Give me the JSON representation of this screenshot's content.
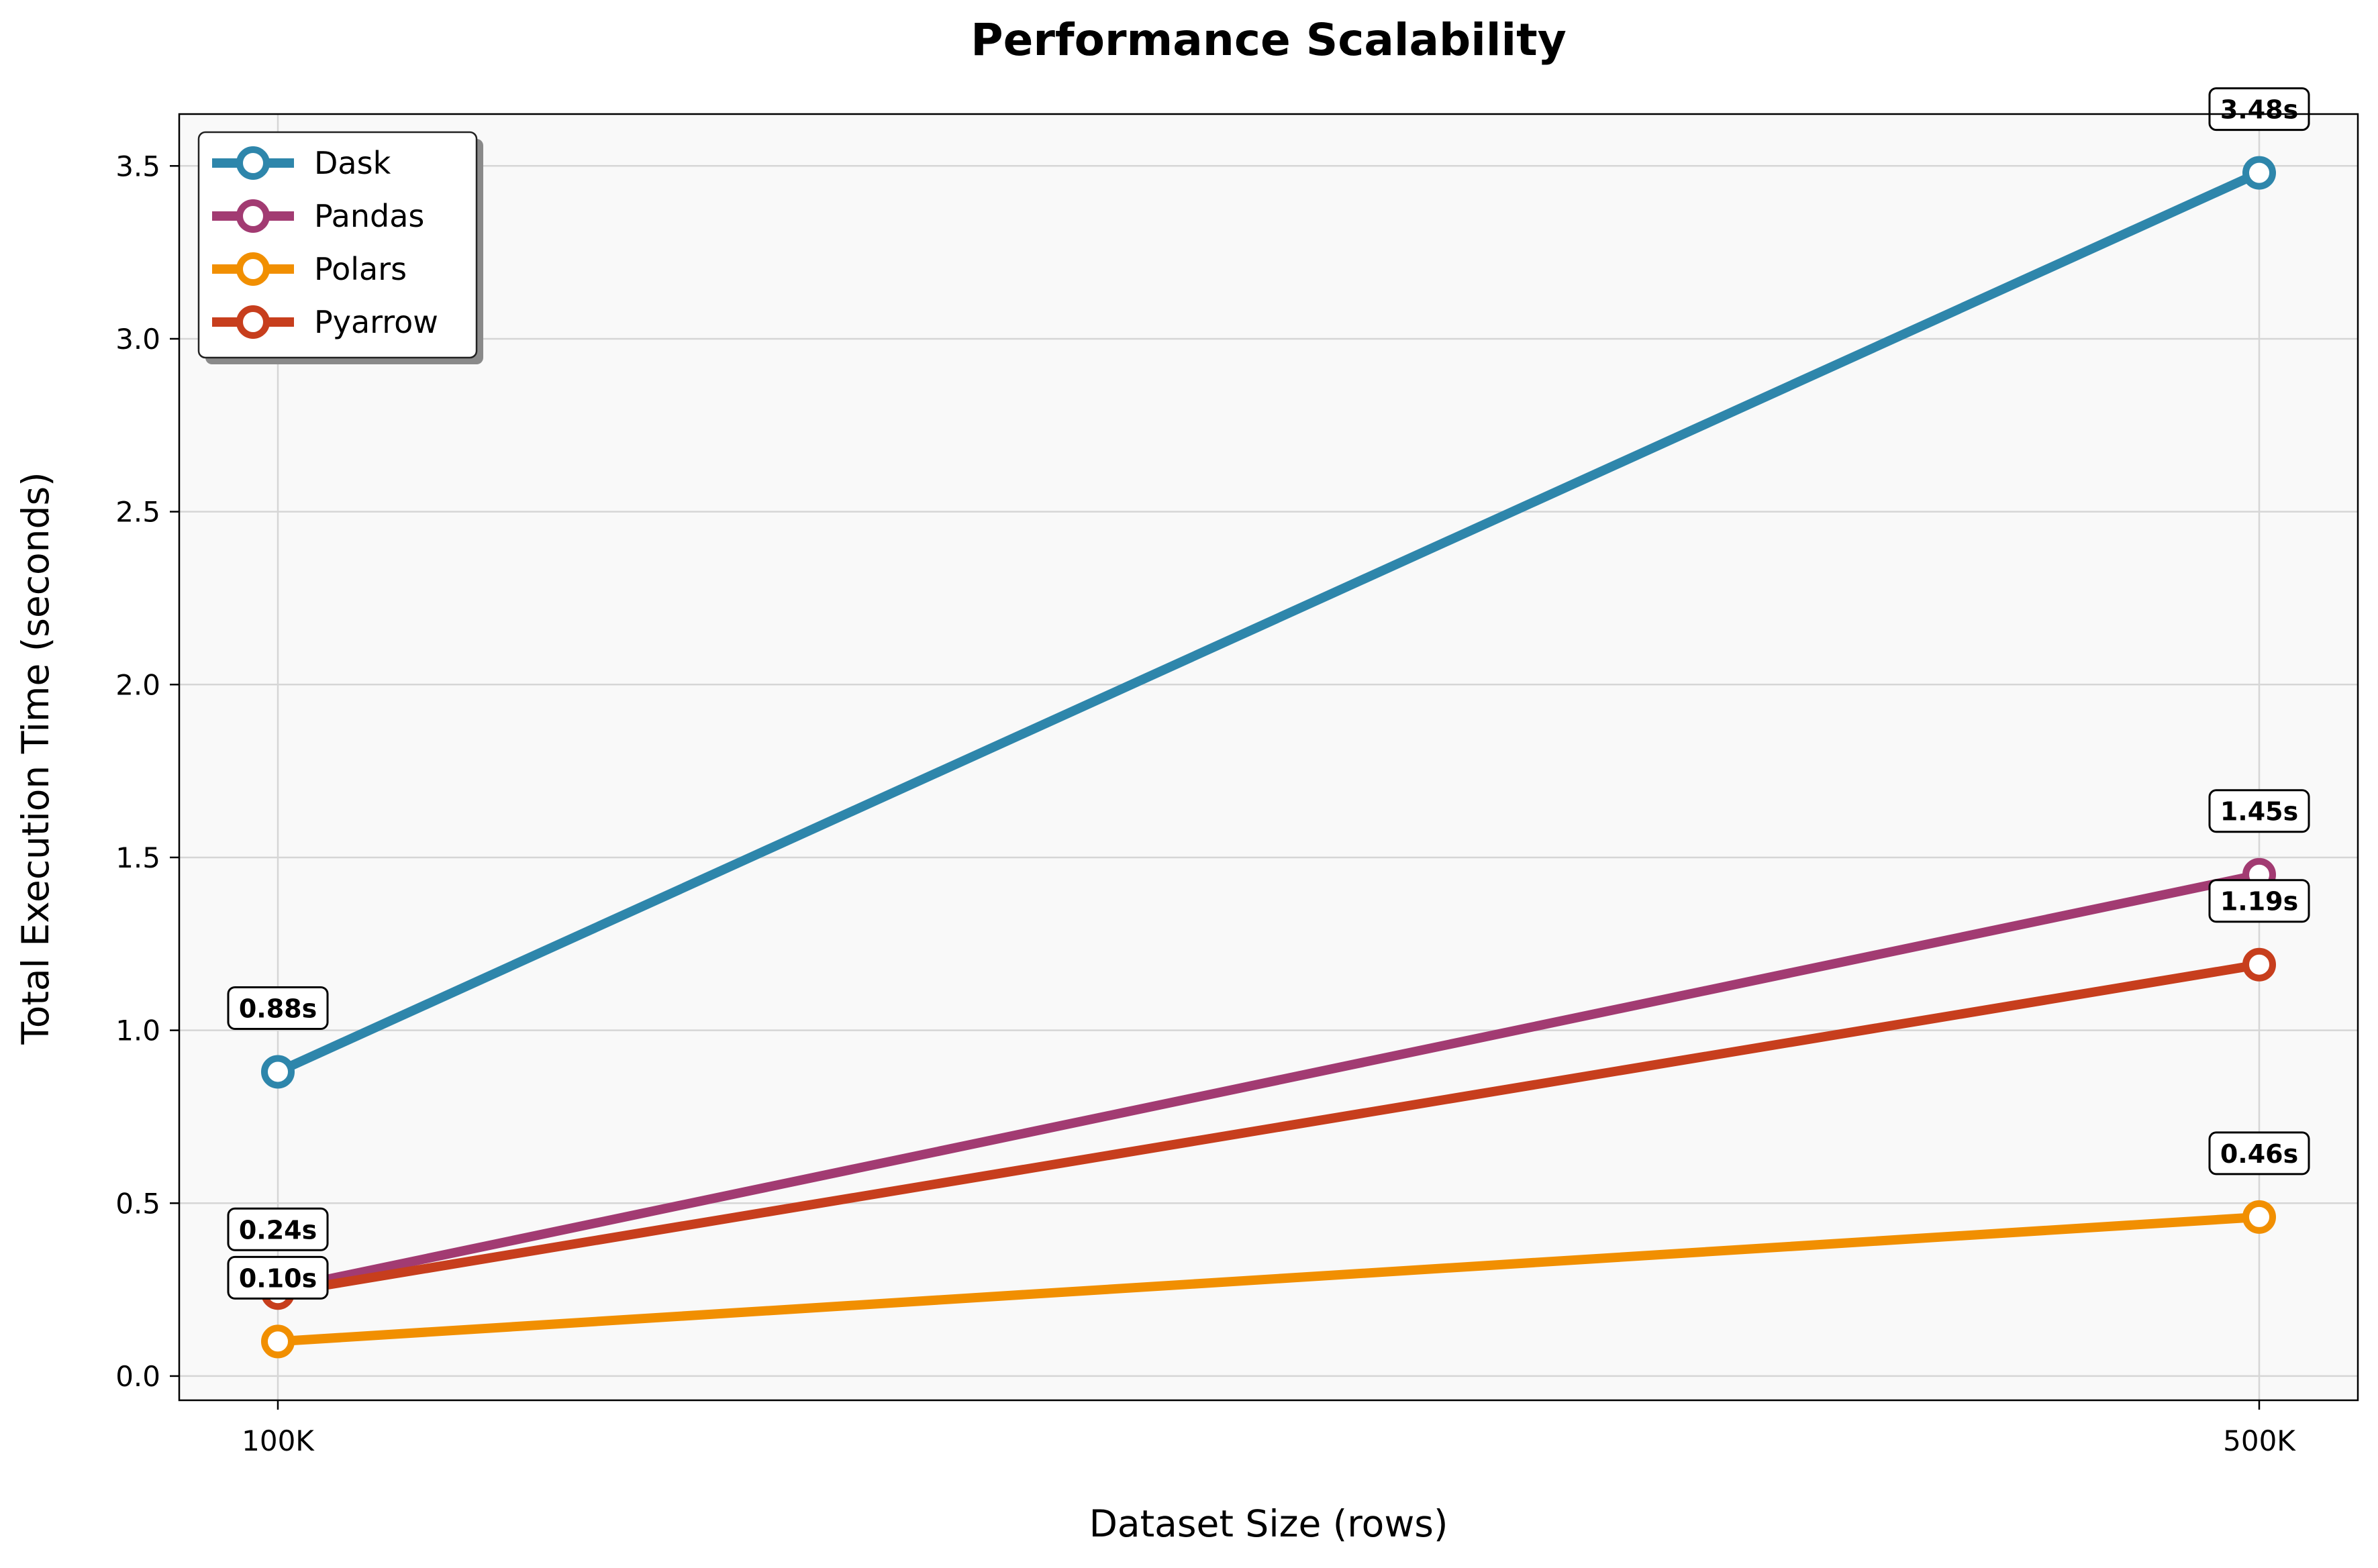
{
  "chart_data": {
    "type": "line",
    "title": "Performance Scalability",
    "xlabel": "Dataset Size (rows)",
    "ylabel": "Total Execution Time (seconds)",
    "categories": [
      "100K",
      "500K"
    ],
    "ylim": [
      -0.07,
      3.65
    ],
    "yticks": [
      0.0,
      0.5,
      1.0,
      1.5,
      2.0,
      2.5,
      3.0,
      3.5
    ],
    "ytick_labels": [
      "0.0",
      "0.5",
      "1.0",
      "1.5",
      "2.0",
      "2.5",
      "3.0",
      "3.5"
    ],
    "grid": true,
    "legend_position": "top-left",
    "series": [
      {
        "name": "Dask",
        "color": "#2E86AB",
        "values": [
          0.88,
          3.48
        ],
        "labels": [
          "0.88s",
          "3.48s"
        ]
      },
      {
        "name": "Pandas",
        "color": "#A23B72",
        "values": [
          0.25,
          1.45
        ],
        "labels": [
          "",
          "1.45s"
        ]
      },
      {
        "name": "Polars",
        "color": "#F18F01",
        "values": [
          0.1,
          0.46
        ],
        "labels": [
          "0.10s",
          "0.46s"
        ]
      },
      {
        "name": "Pyarrow",
        "color": "#C73E1D",
        "values": [
          0.24,
          1.19
        ],
        "labels": [
          "0.24s",
          "1.19s"
        ]
      }
    ]
  }
}
